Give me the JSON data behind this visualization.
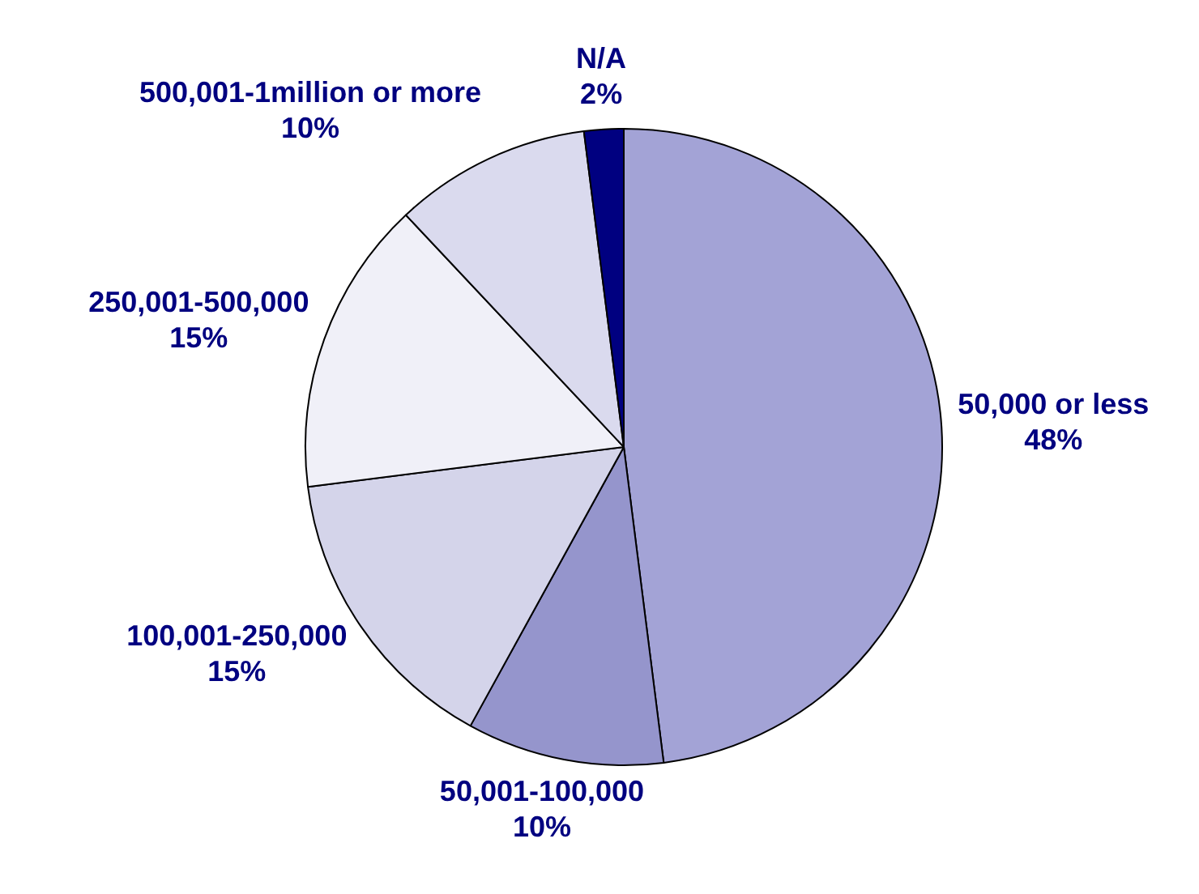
{
  "chart_data": {
    "type": "pie",
    "categories": [
      "50,000 or less",
      "50,001-100,000",
      "100,001-250,000",
      "250,001-500,000",
      "500,001-1million or more",
      "N/A"
    ],
    "values": [
      48,
      10,
      15,
      15,
      10,
      2
    ],
    "colors": [
      "#a3a3d6",
      "#9595cc",
      "#d4d4ea",
      "#f0f0f8",
      "#dadaee",
      "#000080"
    ],
    "value_labels": [
      "48%",
      "10%",
      "15%",
      "15%",
      "10%",
      "2%"
    ],
    "legend": false
  }
}
